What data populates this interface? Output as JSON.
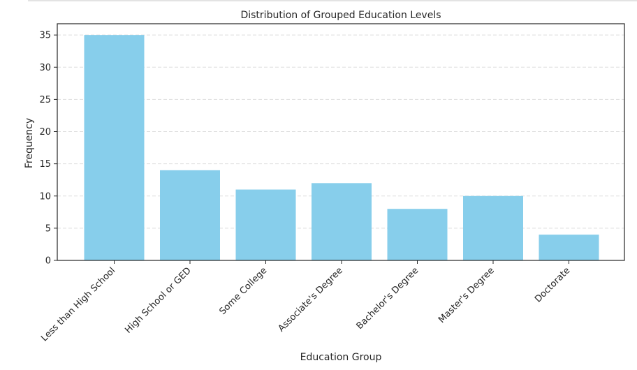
{
  "chart_data": {
    "type": "bar",
    "title": "Distribution of Grouped Education Levels",
    "xlabel": "Education Group",
    "ylabel": "Frequency",
    "categories": [
      "Less than High School",
      "High School or GED",
      "Some College",
      "Associate's Degree",
      "Bachelor's Degree",
      "Master's Degree",
      "Doctorate"
    ],
    "values": [
      35,
      14,
      11,
      12,
      8,
      10,
      4
    ],
    "ylim": [
      0,
      36.75
    ],
    "yticks": [
      0,
      5,
      10,
      15,
      20,
      25,
      30,
      35
    ],
    "grid": "y-dashed",
    "bar_color": "#87ceeb",
    "grid_color": "#dddddd",
    "axis_color": "#262626"
  }
}
